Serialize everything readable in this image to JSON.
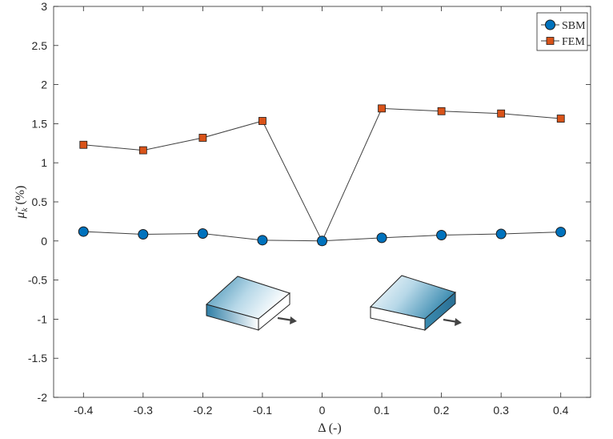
{
  "chart_data": {
    "type": "line",
    "title": "",
    "xlabel": "Δ (-)",
    "ylabel": "μ̃k (%)",
    "ylabel_base": "μ̃",
    "ylabel_sub": "k",
    "ylabel_unit": " (%)",
    "x": [
      -0.4,
      -0.3,
      -0.2,
      -0.1,
      0,
      0.1,
      0.2,
      0.3,
      0.4
    ],
    "xticks": [
      "-0.4",
      "-0.3",
      "-0.2",
      "-0.1",
      "0",
      "0.1",
      "0.2",
      "0.3",
      "0.4"
    ],
    "yticks": [
      "-2",
      "-1.5",
      "-1",
      "-0.5",
      "0",
      "0.5",
      "1",
      "1.5",
      "2",
      "2.5",
      "3"
    ],
    "xlim": [
      -0.45,
      0.45
    ],
    "ylim": [
      -2,
      3
    ],
    "grid": false,
    "legend_position": "top-right",
    "series": [
      {
        "name": "SBM",
        "marker": "circle",
        "color": "#0072BD",
        "line_color": "#404040",
        "values": [
          0.12,
          0.085,
          0.095,
          0.01,
          0.0,
          0.04,
          0.075,
          0.09,
          0.115
        ]
      },
      {
        "name": "FEM",
        "marker": "square",
        "color": "#D95319",
        "line_color": "#404040",
        "values": [
          1.23,
          1.16,
          1.32,
          1.535,
          0.0,
          1.695,
          1.66,
          1.63,
          1.565
        ]
      }
    ],
    "annotations": [
      {
        "type": "plate-icon",
        "shading": "left-edge"
      },
      {
        "type": "plate-icon",
        "shading": "right-edge"
      }
    ]
  }
}
